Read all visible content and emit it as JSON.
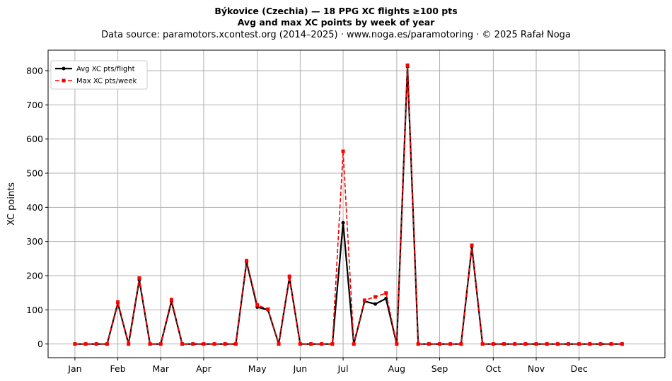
{
  "chart_data": {
    "type": "line",
    "title": "Býkovice (Czechia)  —  18 PPG XC flights ≥100 pts",
    "subtitle": "Avg and max XC points by week of year",
    "source_note": "Data source: paramotors.xcontest.org (2014–2025)  ·  www.noga.es/paramotoring  ·  © 2025 Rafał Noga",
    "xlabel": "",
    "ylabel": "XC points",
    "ylim": [
      -40,
      860
    ],
    "xlim": [
      -2.5,
      55
    ],
    "yticks": [
      0,
      100,
      200,
      300,
      400,
      500,
      600,
      700,
      800
    ],
    "xticks": [
      {
        "label": "Jan",
        "week": 0
      },
      {
        "label": "Feb",
        "week": 4
      },
      {
        "label": "Mar",
        "week": 8
      },
      {
        "label": "Apr",
        "week": 12
      },
      {
        "label": "May",
        "week": 17
      },
      {
        "label": "Jun",
        "week": 21
      },
      {
        "label": "Jul",
        "week": 25
      },
      {
        "label": "Aug",
        "week": 30
      },
      {
        "label": "Sep",
        "week": 34
      },
      {
        "label": "Oct",
        "week": 39
      },
      {
        "label": "Nov",
        "week": 43
      },
      {
        "label": "Dec",
        "week": 47
      }
    ],
    "grid": true,
    "legend_position": "top-left",
    "x": [
      0,
      1,
      2,
      3,
      4,
      5,
      6,
      7,
      8,
      9,
      10,
      11,
      12,
      13,
      14,
      15,
      16,
      17,
      18,
      19,
      20,
      21,
      22,
      23,
      24,
      25,
      26,
      27,
      28,
      29,
      30,
      31,
      32,
      33,
      34,
      35,
      36,
      37,
      38,
      39,
      40,
      41,
      42,
      43,
      44,
      45,
      46,
      47,
      48,
      49,
      50,
      51
    ],
    "series": [
      {
        "name": "Avg XC pts/flight",
        "color": "#000000",
        "style": "solid",
        "marker": "circle",
        "values": [
          0,
          0,
          0,
          0,
          120,
          0,
          188,
          0,
          0,
          125,
          0,
          0,
          0,
          0,
          0,
          0,
          240,
          108,
          100,
          0,
          195,
          0,
          0,
          0,
          0,
          355,
          0,
          125,
          117,
          133,
          0,
          812,
          0,
          0,
          0,
          0,
          0,
          285,
          0,
          0,
          0,
          0,
          0,
          0,
          0,
          0,
          0,
          0,
          0,
          0,
          0,
          0
        ]
      },
      {
        "name": "Max XC pts/week",
        "color": "#ff0000",
        "style": "dashed",
        "marker": "square",
        "values": [
          0,
          0,
          0,
          0,
          123,
          0,
          193,
          0,
          0,
          130,
          0,
          0,
          0,
          0,
          0,
          0,
          244,
          114,
          102,
          0,
          198,
          0,
          0,
          0,
          0,
          564,
          0,
          128,
          138,
          149,
          0,
          816,
          0,
          0,
          0,
          0,
          0,
          289,
          0,
          0,
          0,
          0,
          0,
          0,
          0,
          0,
          0,
          0,
          0,
          0,
          0,
          0
        ]
      }
    ]
  }
}
